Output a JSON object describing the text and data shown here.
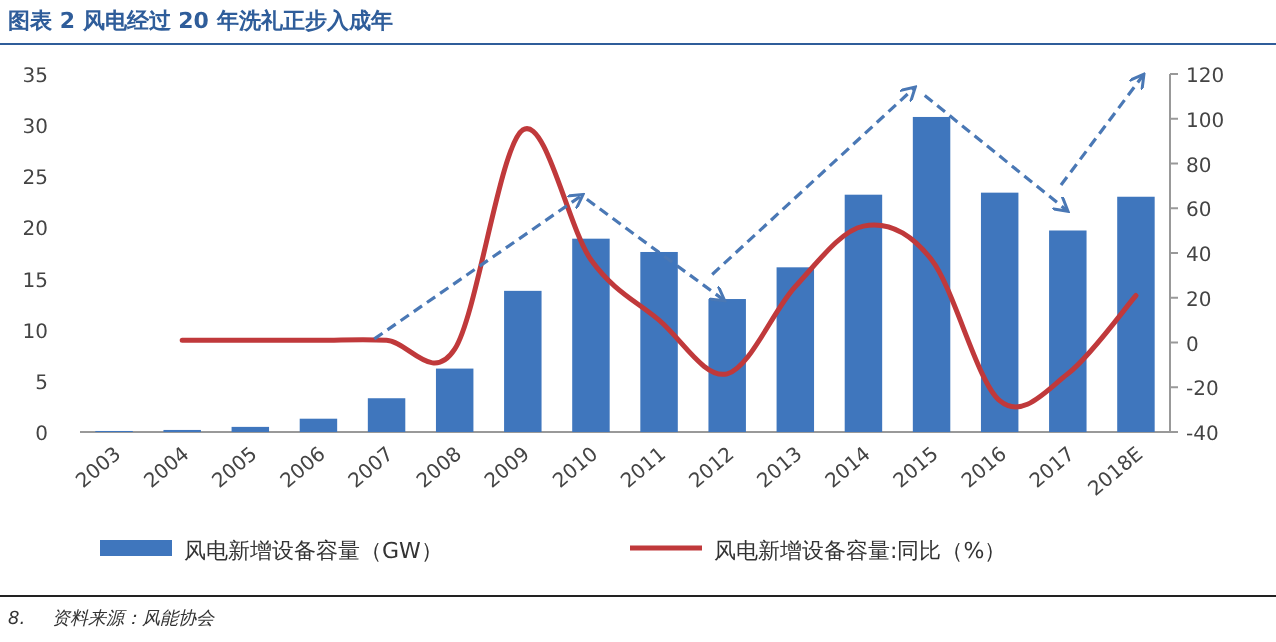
{
  "chart_data": {
    "type": "bar",
    "title": "图表 2   风电经过 20 年洗礼正步入成年",
    "categories": [
      "2003",
      "2004",
      "2005",
      "2006",
      "2007",
      "2008",
      "2009",
      "2010",
      "2011",
      "2012",
      "2013",
      "2014",
      "2015",
      "2016",
      "2017",
      "2018E"
    ],
    "series": [
      {
        "name": "风电新增设备容量（GW）",
        "color": "#3f76bd",
        "values": [
          0.1,
          0.2,
          0.5,
          1.3,
          3.3,
          6.2,
          13.8,
          18.9,
          17.6,
          13,
          16.1,
          23.2,
          30.8,
          23.4,
          19.7,
          23
        ]
      },
      {
        "name": "风电新增设备容量:同比（%）",
        "type": "line",
        "axis": "y2",
        "color": "#c0393b",
        "values": [
          null,
          1,
          1,
          1,
          1,
          -3,
          95,
          37,
          10,
          -14,
          25,
          52,
          37,
          -26,
          -14,
          21
        ]
      }
    ],
    "ylim": [
      0,
      35
    ],
    "yticks": [
      0,
      5,
      10,
      15,
      20,
      25,
      30,
      35
    ],
    "y2lim": [
      -40,
      120
    ],
    "y2ticks": [
      -40,
      -20,
      0,
      20,
      40,
      60,
      80,
      100,
      120
    ],
    "legend": "bottom",
    "grid": false,
    "annotations": [
      "8.",
      "资料来源：风能协会"
    ]
  }
}
